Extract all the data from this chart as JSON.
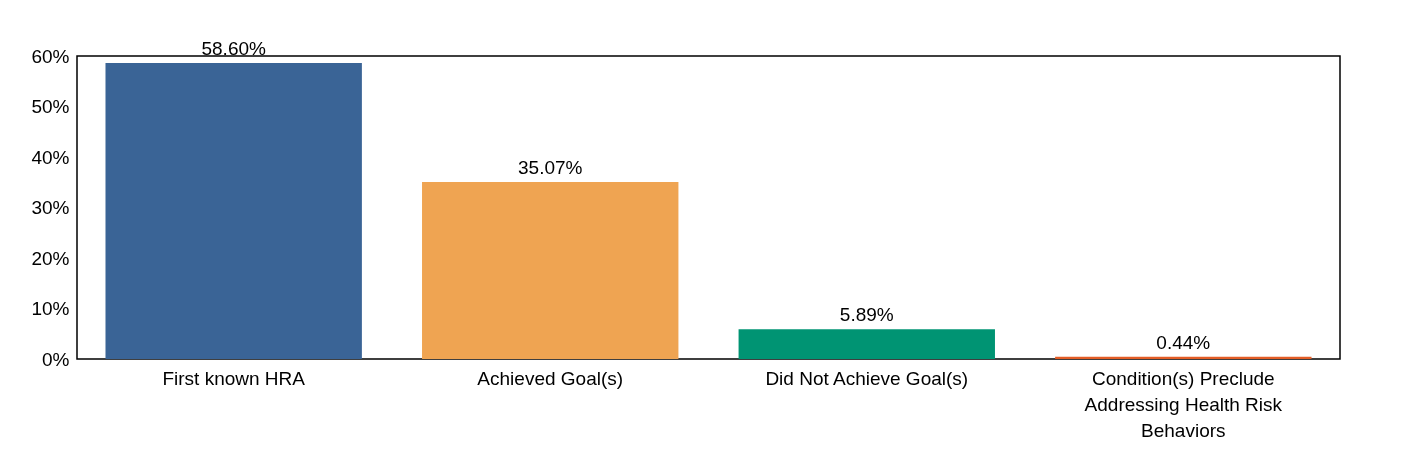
{
  "chart_data": {
    "type": "bar",
    "categories": [
      "First known HRA",
      "Achieved Goal(s)",
      "Did Not Achieve Goal(s)",
      "Condition(s) Preclude Addressing Health Risk Behaviors"
    ],
    "values": [
      58.6,
      35.07,
      5.89,
      0.44
    ],
    "colors": [
      "#3a6496",
      "#efa452",
      "#009473",
      "#e35d26"
    ],
    "value_labels": [
      "58.60%",
      "35.07%",
      "5.89%",
      "0.44%"
    ],
    "ylim": [
      0,
      60
    ],
    "yticks": [
      {
        "value": 0,
        "label": "0%"
      },
      {
        "value": 10,
        "label": "10%"
      },
      {
        "value": 20,
        "label": "20%"
      },
      {
        "value": 30,
        "label": "30%"
      },
      {
        "value": 40,
        "label": "40%"
      },
      {
        "value": 50,
        "label": "50%"
      },
      {
        "value": 60,
        "label": "60%"
      }
    ],
    "grid": false,
    "legend": false
  }
}
